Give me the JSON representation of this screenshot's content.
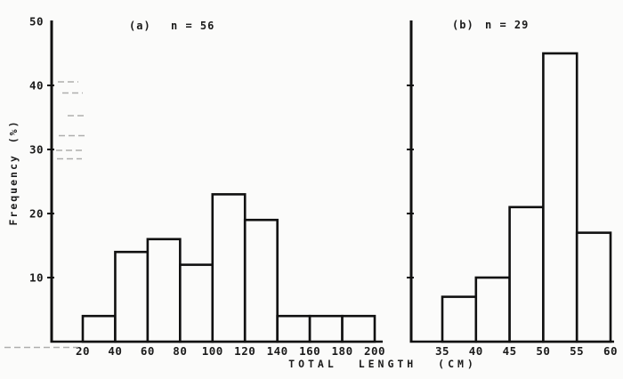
{
  "figure": {
    "xlabel": "TOTAL LENGTH (CM)",
    "ylabel": "Frequency (%)"
  },
  "chart_data": [
    {
      "type": "bar",
      "style": "histogram-outline",
      "panel": "a",
      "title": "(a)",
      "annotation": "n = 56",
      "n": 56,
      "bin_edges": [
        20,
        40,
        60,
        80,
        100,
        120,
        140,
        160,
        180,
        200
      ],
      "values": [
        4,
        14,
        16,
        12,
        23,
        19,
        4,
        4,
        4
      ],
      "x_tick_labels": [
        "20",
        "40",
        "60",
        "80",
        "100",
        "120",
        "140",
        "160",
        "180",
        "200"
      ],
      "y_tick_values": [
        10,
        20,
        30,
        40,
        50
      ],
      "y_tick_labels": [
        "10",
        "20",
        "30",
        "40",
        "50"
      ],
      "show_y_tick_labels": true,
      "xlim": [
        20,
        200
      ],
      "ylim": [
        0,
        50
      ],
      "grid": false,
      "legend": null
    },
    {
      "type": "bar",
      "style": "histogram-outline",
      "panel": "b",
      "title": "(b)",
      "annotation": "n = 29",
      "n": 29,
      "bin_edges": [
        35,
        40,
        45,
        50,
        55,
        60
      ],
      "values": [
        7,
        10,
        21,
        45,
        17
      ],
      "x_tick_labels": [
        "35",
        "40",
        "45",
        "50",
        "55",
        "60"
      ],
      "y_tick_values": [
        10,
        20,
        30,
        40
      ],
      "y_tick_labels": [],
      "show_y_tick_labels": false,
      "xlim": [
        35,
        60
      ],
      "ylim": [
        0,
        50
      ],
      "grid": false,
      "legend": null
    }
  ]
}
